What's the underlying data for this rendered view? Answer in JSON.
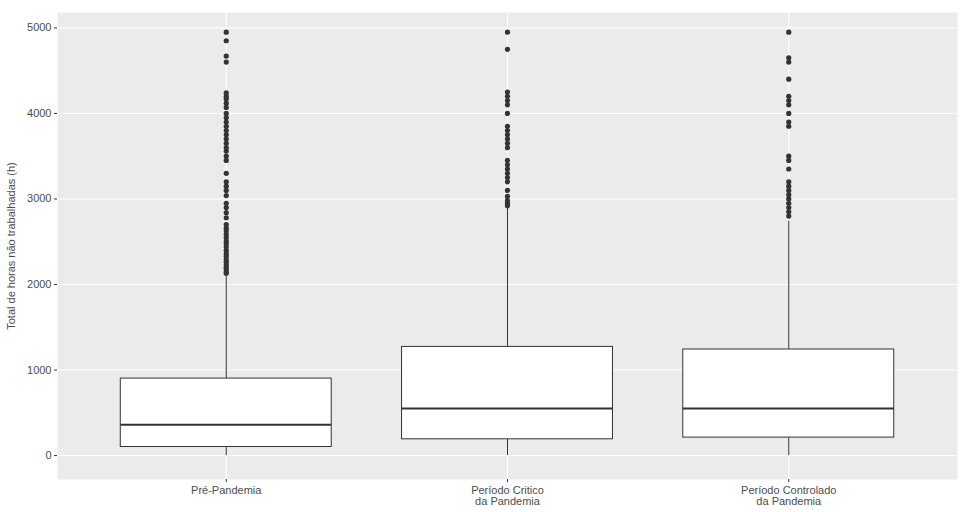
{
  "chart_data": {
    "type": "boxplot",
    "ylabel": "Total de horas não trabalhadas (h)",
    "categories": [
      "Pré-Pandemia",
      "Período Critico\nda Pandemia",
      "Período Controlado\nda Pandemia"
    ],
    "whisker_low": [
      0,
      0,
      0
    ],
    "q1": [
      100,
      190,
      210
    ],
    "median": [
      360,
      550,
      550
    ],
    "q3": [
      900,
      1270,
      1240
    ],
    "whisker_high": [
      2110,
      2900,
      2740
    ],
    "outliers": [
      [
        2130,
        2150,
        2180,
        2200,
        2230,
        2260,
        2290,
        2330,
        2360,
        2400,
        2440,
        2480,
        2510,
        2550,
        2590,
        2630,
        2660,
        2700,
        2780,
        2840,
        2900,
        2950,
        3040,
        3100,
        3150,
        3200,
        3300,
        3450,
        3500,
        3560,
        3600,
        3650,
        3700,
        3750,
        3800,
        3850,
        3900,
        3950,
        4000,
        4070,
        4120,
        4170,
        4200,
        4240,
        4600,
        4670,
        4850,
        4950
      ],
      [
        2920,
        2950,
        2980,
        3030,
        3100,
        3200,
        3250,
        3300,
        3350,
        3400,
        3450,
        3600,
        3650,
        3700,
        3750,
        3800,
        3850,
        4000,
        4100,
        4150,
        4200,
        4250,
        4750,
        4950
      ],
      [
        2800,
        2850,
        2900,
        2950,
        3000,
        3050,
        3100,
        3150,
        3200,
        3350,
        3450,
        3500,
        3850,
        3900,
        4000,
        4100,
        4150,
        4200,
        4400,
        4600,
        4650,
        4950
      ]
    ],
    "ylim": [
      -280,
      5180
    ],
    "yticks": [
      0,
      1000,
      2000,
      3000,
      4000,
      5000
    ],
    "grid": true,
    "color": "#333333"
  }
}
